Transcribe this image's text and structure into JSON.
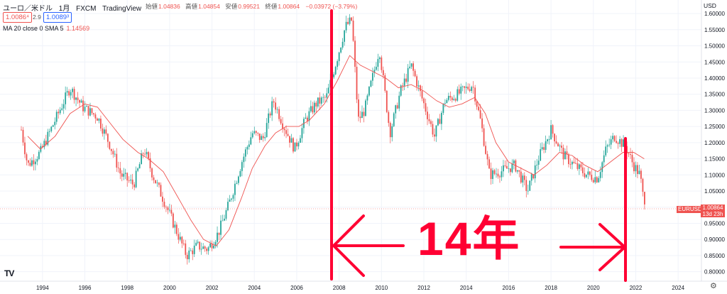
{
  "header": {
    "symbol": "ユーロ／米ドル",
    "interval": "1月",
    "exchange": "FXCM",
    "source": "TradingView"
  },
  "ohlc": [
    {
      "label": "始値",
      "value": "1.04836"
    },
    {
      "label": "高値",
      "value": "1.04854"
    },
    {
      "label": "安値",
      "value": "0.99521"
    },
    {
      "label": "終値",
      "value": "1.00864"
    },
    {
      "label": "",
      "value": "−0.03972 (−3.79%)"
    }
  ],
  "sell_price": "1.0086⁴",
  "spread": "2.9",
  "buy_price": "1.0089³",
  "ma_indicator": {
    "label": "MA 20 close 0 SMA 5",
    "value": "1.14569"
  },
  "currency": "USD",
  "symbol_tag": "EURUSD",
  "last_price": "1.00864",
  "countdown": "13d 23h",
  "logo": "TV",
  "annotation": "14年",
  "colors": {
    "up": "#26a69a",
    "down": "#ef5350",
    "ma": "#ef5350",
    "annotation": "#ff0033"
  },
  "icons": {
    "settings": "gear-icon",
    "logo": "tradingview-logo"
  },
  "chart_data": {
    "type": "candlestick",
    "xlabel": "",
    "ylabel": "",
    "ylim": [
      0.775,
      1.62
    ],
    "yticks": [
      "0.80000",
      "0.85000",
      "0.90000",
      "0.95000",
      "1.00000",
      "1.05000",
      "1.10000",
      "1.15000",
      "1.20000",
      "1.25000",
      "1.30000",
      "1.35000",
      "1.40000",
      "1.45000",
      "1.50000",
      "1.55000",
      "1.60000"
    ],
    "xticks": [
      "1994",
      "1996",
      "1998",
      "2000",
      "2002",
      "2004",
      "2006",
      "2008",
      "2010",
      "2012",
      "2014",
      "2016",
      "2018",
      "2020",
      "2022",
      "2024"
    ],
    "xlim": [
      1993.0,
      2025.0
    ],
    "series": [
      {
        "type": "candles",
        "trace": [
          [
            1993.0,
            1.24
          ],
          [
            1993.3,
            1.13
          ],
          [
            1993.9,
            1.17
          ],
          [
            1994.6,
            1.27
          ],
          [
            1995.3,
            1.37
          ],
          [
            1995.9,
            1.31
          ],
          [
            1996.6,
            1.28
          ],
          [
            1997.2,
            1.19
          ],
          [
            1997.7,
            1.1
          ],
          [
            1998.3,
            1.07
          ],
          [
            1998.8,
            1.18
          ],
          [
            1999.2,
            1.1
          ],
          [
            1999.8,
            1.01
          ],
          [
            2000.3,
            0.93
          ],
          [
            2000.8,
            0.85
          ],
          [
            2001.3,
            0.88
          ],
          [
            2001.8,
            0.87
          ],
          [
            2002.3,
            0.92
          ],
          [
            2002.8,
            1.01
          ],
          [
            2003.4,
            1.14
          ],
          [
            2003.9,
            1.23
          ],
          [
            2004.4,
            1.21
          ],
          [
            2004.9,
            1.33
          ],
          [
            2005.4,
            1.25
          ],
          [
            2005.9,
            1.18
          ],
          [
            2006.4,
            1.27
          ],
          [
            2006.9,
            1.32
          ],
          [
            2007.4,
            1.34
          ],
          [
            2007.9,
            1.46
          ],
          [
            2008.3,
            1.56
          ],
          [
            2008.6,
            1.58
          ],
          [
            2008.9,
            1.27
          ],
          [
            2009.2,
            1.3
          ],
          [
            2009.9,
            1.49
          ],
          [
            2010.4,
            1.23
          ],
          [
            2010.9,
            1.36
          ],
          [
            2011.4,
            1.44
          ],
          [
            2011.9,
            1.34
          ],
          [
            2012.5,
            1.22
          ],
          [
            2013.0,
            1.33
          ],
          [
            2013.6,
            1.35
          ],
          [
            2014.3,
            1.38
          ],
          [
            2014.7,
            1.26
          ],
          [
            2015.1,
            1.1
          ],
          [
            2015.6,
            1.11
          ],
          [
            2016.3,
            1.13
          ],
          [
            2016.9,
            1.05
          ],
          [
            2017.4,
            1.15
          ],
          [
            2018.0,
            1.24
          ],
          [
            2018.6,
            1.16
          ],
          [
            2019.1,
            1.13
          ],
          [
            2019.7,
            1.1
          ],
          [
            2020.2,
            1.09
          ],
          [
            2020.6,
            1.18
          ],
          [
            2021.0,
            1.22
          ],
          [
            2021.5,
            1.19
          ],
          [
            2021.9,
            1.13
          ],
          [
            2022.2,
            1.1
          ],
          [
            2022.4,
            1.00864
          ]
        ]
      },
      {
        "type": "line",
        "name": "MA 20 close 0 SMA 5",
        "trace": [
          [
            1993.3,
            1.22
          ],
          [
            1993.9,
            1.18
          ],
          [
            1994.6,
            1.22
          ],
          [
            1995.3,
            1.29
          ],
          [
            1996.0,
            1.32
          ],
          [
            1996.6,
            1.31
          ],
          [
            1997.2,
            1.26
          ],
          [
            1997.8,
            1.21
          ],
          [
            1998.5,
            1.17
          ],
          [
            1999.0,
            1.15
          ],
          [
            1999.7,
            1.11
          ],
          [
            2000.4,
            1.03
          ],
          [
            2001.0,
            0.96
          ],
          [
            2001.6,
            0.9
          ],
          [
            2002.2,
            0.88
          ],
          [
            2002.8,
            0.93
          ],
          [
            2003.4,
            1.03
          ],
          [
            2003.9,
            1.12
          ],
          [
            2004.5,
            1.19
          ],
          [
            2005.0,
            1.23
          ],
          [
            2005.5,
            1.25
          ],
          [
            2006.1,
            1.25
          ],
          [
            2006.6,
            1.27
          ],
          [
            2007.3,
            1.32
          ],
          [
            2007.9,
            1.39
          ],
          [
            2008.5,
            1.47
          ],
          [
            2009.0,
            1.44
          ],
          [
            2009.6,
            1.42
          ],
          [
            2010.2,
            1.4
          ],
          [
            2010.8,
            1.37
          ],
          [
            2011.4,
            1.38
          ],
          [
            2012.0,
            1.36
          ],
          [
            2012.6,
            1.33
          ],
          [
            2013.2,
            1.31
          ],
          [
            2013.8,
            1.32
          ],
          [
            2014.4,
            1.34
          ],
          [
            2014.9,
            1.29
          ],
          [
            2015.4,
            1.2
          ],
          [
            2016.0,
            1.14
          ],
          [
            2016.6,
            1.12
          ],
          [
            2017.2,
            1.1
          ],
          [
            2017.8,
            1.13
          ],
          [
            2018.4,
            1.17
          ],
          [
            2019.0,
            1.16
          ],
          [
            2019.6,
            1.13
          ],
          [
            2020.2,
            1.11
          ],
          [
            2020.8,
            1.14
          ],
          [
            2021.4,
            1.17
          ],
          [
            2021.9,
            1.17
          ],
          [
            2022.4,
            1.15
          ]
        ]
      }
    ]
  }
}
